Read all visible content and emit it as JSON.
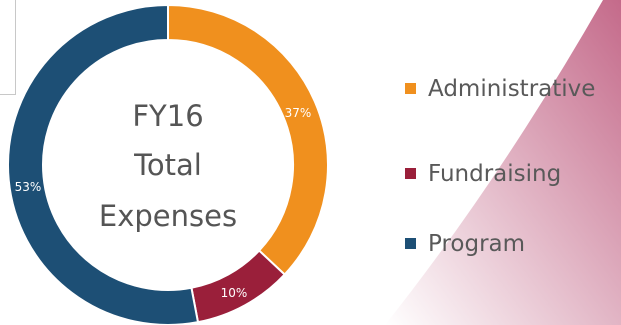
{
  "chart_data": {
    "type": "pie",
    "style": "donut",
    "center_title_lines": [
      "FY16",
      "Total",
      "Expenses"
    ],
    "slices": [
      {
        "label": "Administrative",
        "value": 37,
        "display": "37%",
        "color": "#f0901e"
      },
      {
        "label": "Fundraising",
        "value": 10,
        "display": "10%",
        "color": "#9a1f3a"
      },
      {
        "label": "Program",
        "value": 53,
        "display": "53%",
        "color": "#1d4f75"
      }
    ],
    "legend_position": "right"
  },
  "colors": {
    "background": "#ffffff",
    "gradient_start": "#ffffff",
    "gradient_end": "#c46a8a",
    "center_text": "#555555",
    "legend_text": "#595959"
  }
}
